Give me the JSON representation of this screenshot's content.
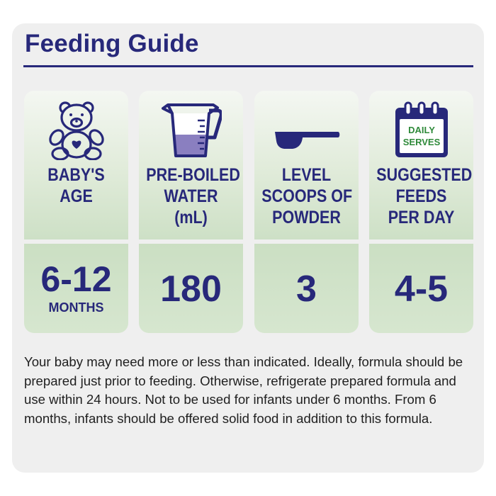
{
  "title": "Feeding Guide",
  "colors": {
    "navy": "#27287a",
    "green": "#2f8a3a",
    "panel": "#efefef",
    "mint": "#d6e6cf"
  },
  "columns": [
    {
      "icon": "teddy-bear-icon",
      "label_lines": [
        "BABY'S",
        "AGE"
      ],
      "value": "6-12",
      "sub": "MONTHS"
    },
    {
      "icon": "measuring-jug-icon",
      "label_lines": [
        "PRE-BOILED",
        "WATER",
        "(mL)"
      ],
      "value": "180"
    },
    {
      "icon": "scoop-icon",
      "label_lines": [
        "LEVEL",
        "SCOOPS OF",
        "POWDER"
      ],
      "value": "3"
    },
    {
      "icon": "calendar-icon",
      "calendar_text": [
        "DAILY",
        "SERVES"
      ],
      "label_lines": [
        "SUGGESTED",
        "FEEDS",
        "PER DAY"
      ],
      "value": "4-5"
    }
  ],
  "note": "Your baby may need more or less than indicated. Ideally, formula should be prepared just prior to feeding. Otherwise, refrigerate prepared formula and use within 24 hours. Not to be used for infants under 6 months. From 6 months, infants should be offered solid food in addition to this formula."
}
